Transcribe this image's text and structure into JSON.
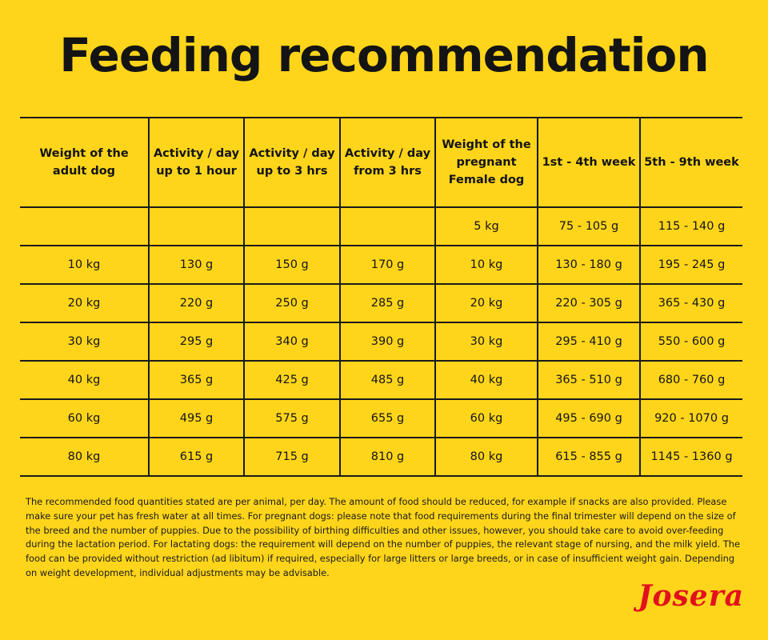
{
  "title": "Feeding recommendation",
  "table": {
    "headers": [
      "Weight of the adult dog",
      "Activity / day up to 1 hour",
      "Activity / day up to 3 hrs",
      "Activity / day from 3 hrs",
      "Weight of the pregnant Female dog",
      "1st - 4th week",
      "5th - 9th week"
    ],
    "rows": [
      [
        "",
        "",
        "",
        "",
        "5 kg",
        "75 - 105 g",
        "115 - 140 g"
      ],
      [
        "10 kg",
        "130 g",
        "150 g",
        "170 g",
        "10 kg",
        "130 - 180 g",
        "195 - 245 g"
      ],
      [
        "20 kg",
        "220 g",
        "250 g",
        "285 g",
        "20 kg",
        "220 - 305 g",
        "365 - 430 g"
      ],
      [
        "30 kg",
        "295 g",
        "340 g",
        "390 g",
        "30 kg",
        "295 - 410 g",
        "550 - 600 g"
      ],
      [
        "40 kg",
        "365 g",
        "425 g",
        "485 g",
        "40 kg",
        "365 - 510 g",
        "680 - 760 g"
      ],
      [
        "60 kg",
        "495 g",
        "575 g",
        "655 g",
        "60 kg",
        "495 - 690 g",
        "920 - 1070 g"
      ],
      [
        "80 kg",
        "615 g",
        "715 g",
        "810 g",
        "80 kg",
        "615 - 855 g",
        "1145 - 1360 g"
      ]
    ]
  },
  "footer_text": "The recommended food quantities stated are per animal, per day. The amount of food should be reduced, for example if snacks are also provided. Please make sure your pet has fresh water at all times. For pregnant dogs: please note that food requirements during the final trimester will depend on the size of the breed and the number of puppies. Due to the possibility of birthing difficulties and other issues, however, you should take care to avoid over-feeding during the lactation period. For lactating dogs: the requirement will depend on the number of puppies, the relevant stage of nursing, and the milk yield. The food can be provided without restriction (ad libitum) if required, especially for large litters or large breeds, or in case of insufficient weight gain. Depending on weight development, individual adjustments may be advisable.",
  "brand": "Josera",
  "colors": {
    "background": "#fed51a",
    "text": "#141414",
    "brand": "#e2101d"
  }
}
